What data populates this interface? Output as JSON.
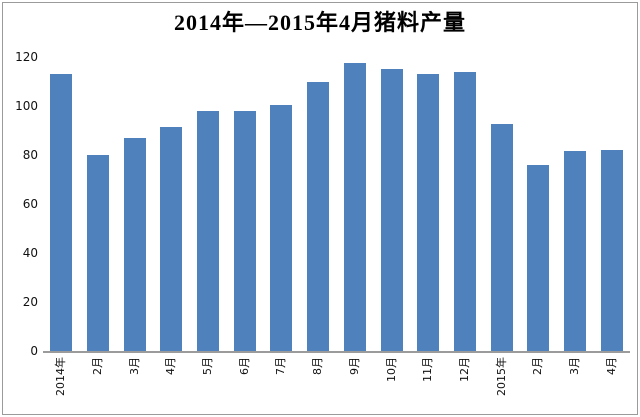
{
  "chart_data": {
    "type": "bar",
    "title": "2014年—2015年4月猪料产量",
    "categories": [
      "2014年",
      "2月",
      "3月",
      "4月",
      "5月",
      "6月",
      "7月",
      "8月",
      "9月",
      "10月",
      "11月",
      "12月",
      "2015年",
      "2月",
      "3月",
      "4月"
    ],
    "values": [
      113,
      80,
      87,
      91.5,
      98,
      98,
      100.5,
      110,
      117.5,
      115,
      113,
      114,
      92.5,
      76,
      81.5,
      82
    ],
    "xlabel": "",
    "ylabel": "",
    "ylim": [
      0,
      120
    ],
    "yticks": [
      0,
      20,
      40,
      60,
      80,
      100,
      120
    ],
    "x_tick_rotation_deg": -90,
    "grid": false,
    "legend_position": "none",
    "bar_color": "#4F81BD",
    "axis_line_color": "#9b9b9b",
    "frame_border_color": "#9b9b9b",
    "text_color": "#111111",
    "background_color": "#ffffff"
  }
}
